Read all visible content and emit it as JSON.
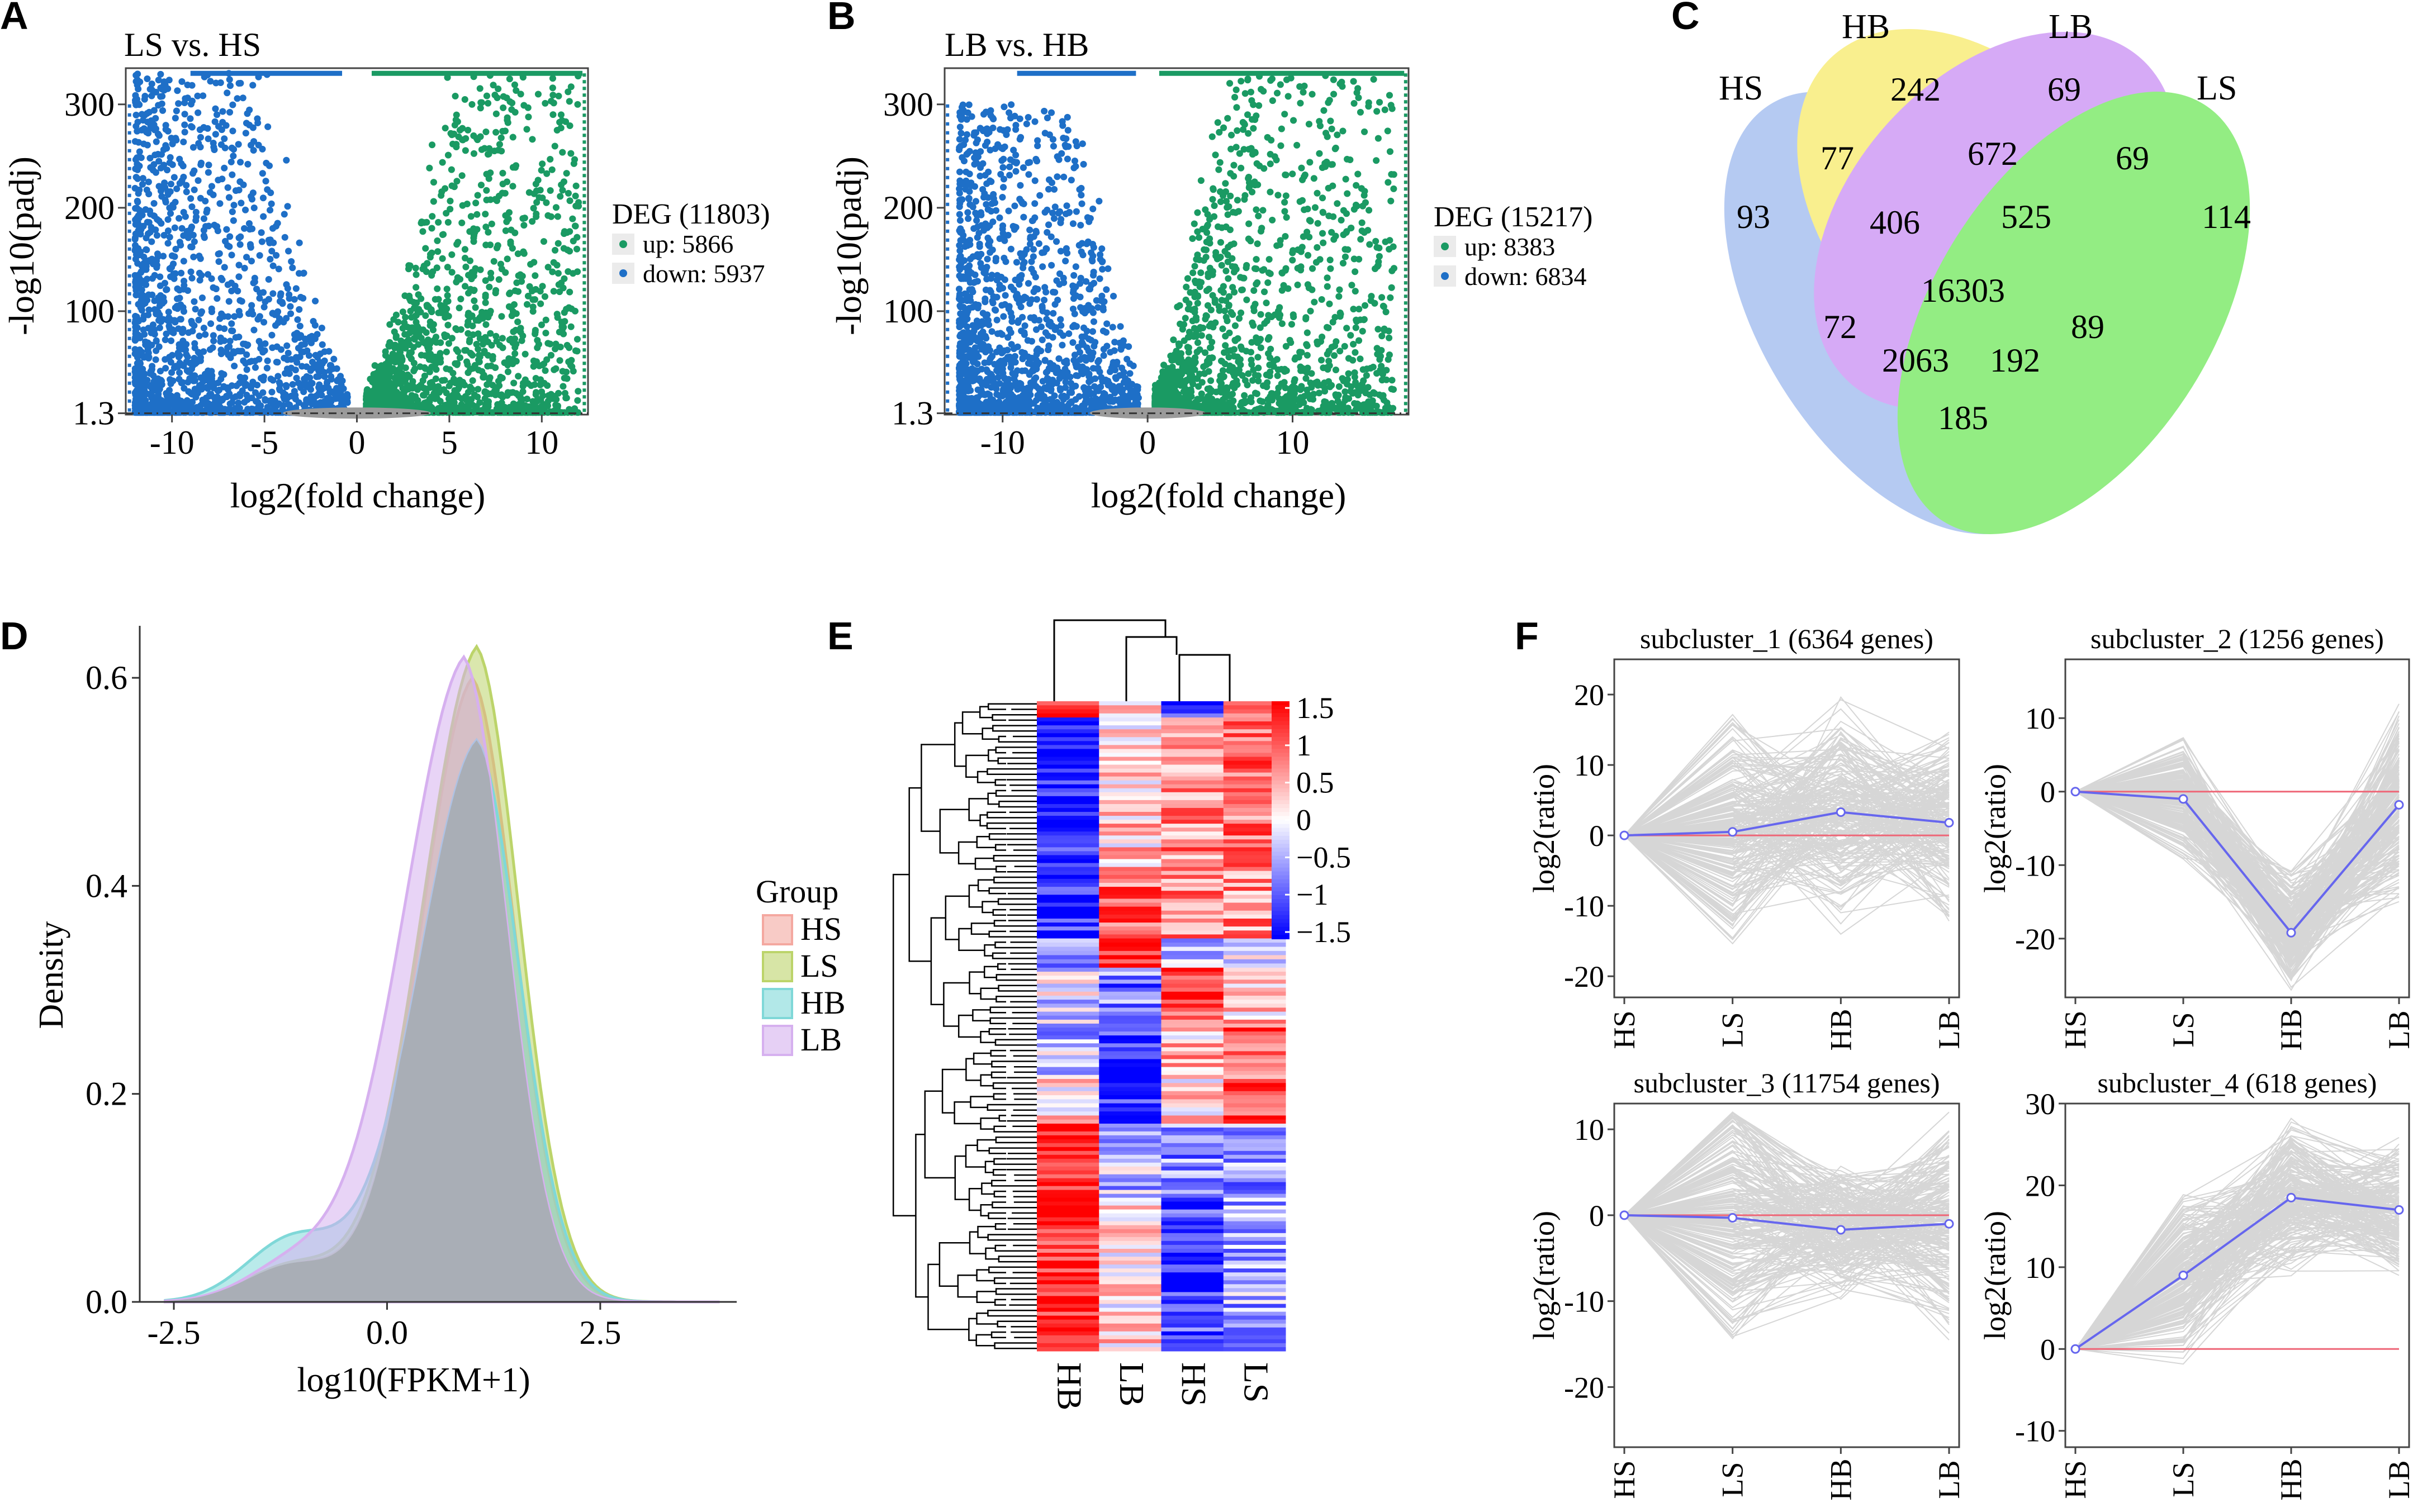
{
  "colors": {
    "up": "#1a9a63",
    "down": "#1e6fc7",
    "ns": "#9a9a9a",
    "hs": "#f4a8a0",
    "ls": "#bcd46a",
    "hb": "#7fd8d8",
    "lb": "#d6b0ef",
    "overlap": "#a9aeb6",
    "heat_low": "#1a1aff",
    "heat_mid": "#ffffff",
    "heat_high": "#ff1a1a",
    "profile": "#cccccc",
    "centroid": "#6666ee",
    "zero": "#ee6677"
  },
  "panels": {
    "a": "A",
    "b": "B",
    "c": "C",
    "d": "D",
    "e": "E",
    "f": "F"
  },
  "chart_data": [
    {
      "id": "A",
      "type": "scatter",
      "title": "LS vs. HS",
      "xlabel": "log2(fold change)",
      "ylabel": "-log10(padj)",
      "xlim": [
        -12.5,
        12.5
      ],
      "ylim": [
        0,
        335
      ],
      "xticks": [
        -10,
        -5,
        0,
        5,
        10
      ],
      "yticks": [
        1.3,
        100,
        200,
        300
      ],
      "threshold_y": 1.3,
      "legend": {
        "title": "DEG (11803)",
        "up": "up: 5866",
        "down": "down: 5937"
      },
      "series": [
        {
          "name": "up",
          "count": 5866,
          "x_range": [
            0.5,
            12
          ],
          "y_max": 330
        },
        {
          "name": "down",
          "count": 5937,
          "x_range": [
            -12,
            -0.5
          ],
          "y_max": 330
        }
      ]
    },
    {
      "id": "B",
      "type": "scatter",
      "title": "LB vs. HB",
      "xlabel": "log2(fold change)",
      "ylabel": "-log10(padj)",
      "xlim": [
        -14,
        18
      ],
      "ylim": [
        0,
        335
      ],
      "xticks": [
        -10,
        0,
        10
      ],
      "yticks": [
        1.3,
        100,
        200,
        300
      ],
      "threshold_y": 1.3,
      "legend": {
        "title": "DEG (15217)",
        "up": "up: 8383",
        "down": "down: 6834"
      },
      "series": [
        {
          "name": "up",
          "count": 8383,
          "x_range": [
            0.5,
            17
          ],
          "y_max": 330
        },
        {
          "name": "down",
          "count": 6834,
          "x_range": [
            -13,
            -0.5
          ],
          "y_max": 300
        }
      ]
    },
    {
      "id": "C",
      "type": "venn",
      "sets": [
        "HS",
        "HB",
        "LB",
        "LS"
      ],
      "counts": {
        "HS": "93",
        "HB": "242",
        "LB": "69",
        "LS": "114",
        "HS_HB": "77",
        "HB_LB": "672",
        "LB_LS": "69",
        "HS_HB_LB": "406",
        "HB_LB_LS": "525",
        "ALL": "16303",
        "HS_LB": "72",
        "HB_LS": "89",
        "HS_LB_LS": "2063",
        "HS_HB_LS": "192",
        "HS_LS": "185"
      }
    },
    {
      "id": "D",
      "type": "area",
      "xlabel": "log10(FPKM+1)",
      "ylabel": "Density",
      "xlim": [
        -2.9,
        4.1
      ],
      "ylim": [
        0,
        0.65
      ],
      "xticks": [
        "-2.5",
        "0.0",
        "2.5"
      ],
      "yticks": [
        "0.0",
        "0.2",
        "0.4",
        "0.6"
      ],
      "legend": {
        "title": "Group",
        "items": [
          "HS",
          "LS",
          "HB",
          "LB"
        ]
      },
      "series": [
        {
          "name": "HS",
          "peak_x": 1.0,
          "peak": 0.6
        },
        {
          "name": "LS",
          "peak_x": 1.05,
          "peak": 0.63
        },
        {
          "name": "HB",
          "peak_x": 1.05,
          "peak": 0.54
        },
        {
          "name": "LB",
          "peak_x": 0.9,
          "peak": 0.62
        }
      ]
    },
    {
      "id": "E",
      "type": "heatmap",
      "columns": [
        "HB",
        "LB",
        "HS",
        "LS"
      ],
      "colorbar": {
        "ticks": [
          "1.5",
          "1",
          "0.5",
          "0",
          "−0.5",
          "−1",
          "−1.5"
        ],
        "range": [
          -1.5,
          1.5
        ]
      },
      "blocks": [
        {
          "frac": 0.025,
          "values": [
            1.2,
            0.3,
            -1.3,
            0.6
          ]
        },
        {
          "frac": 0.23,
          "values": [
            -1.4,
            0.3,
            0.7,
            0.8
          ]
        },
        {
          "frac": 0.11,
          "values": [
            -1.3,
            0.9,
            0.8,
            0.6
          ]
        },
        {
          "frac": 0.045,
          "values": [
            -0.5,
            1.1,
            -0.6,
            -0.2
          ]
        },
        {
          "frac": 0.08,
          "values": [
            -0.2,
            -0.8,
            1.2,
            0.3
          ]
        },
        {
          "frac": 0.085,
          "values": [
            -0.4,
            -1.2,
            0.4,
            1.1
          ]
        },
        {
          "frac": 0.075,
          "values": [
            0.2,
            -1.3,
            0.3,
            1.0
          ]
        },
        {
          "frac": 0.12,
          "values": [
            1.4,
            -0.4,
            -0.7,
            -0.6
          ]
        },
        {
          "frac": 0.23,
          "values": [
            1.3,
            0.2,
            -1.1,
            -0.5
          ]
        }
      ]
    },
    {
      "id": "F",
      "type": "line",
      "xcategories": [
        "HS",
        "LS",
        "HB",
        "LB"
      ],
      "ylabel": "log2(ratio)",
      "subplots": [
        {
          "title": "subcluster_1 (6364 genes)",
          "ylim": [
            -23,
            25
          ],
          "yticks": [
            -20,
            -10,
            0,
            10,
            20
          ],
          "centroid": [
            0,
            0.5,
            3.3,
            1.8
          ],
          "spread": [
            0,
            18,
            18,
            15
          ]
        },
        {
          "title": "subcluster_2 (1256 genes)",
          "ylim": [
            -28,
            18
          ],
          "yticks": [
            -20,
            -10,
            0,
            10
          ],
          "centroid": [
            0,
            -1,
            -19.2,
            -1.8
          ],
          "spread": [
            0,
            9,
            9,
            15
          ]
        },
        {
          "title": "subcluster_3 (11754 genes)",
          "ylim": [
            -27,
            13
          ],
          "yticks": [
            -20,
            -10,
            0,
            10
          ],
          "centroid": [
            0,
            -0.3,
            -1.7,
            -1
          ],
          "spread": [
            0,
            18,
            9,
            14
          ]
        },
        {
          "title": "subcluster_4 (618 genes)",
          "ylim": [
            -12,
            30
          ],
          "yticks": [
            -10,
            0,
            10,
            20,
            30
          ],
          "centroid": [
            0,
            9,
            18.5,
            17
          ],
          "spread": [
            0,
            12,
            10,
            9
          ]
        }
      ]
    }
  ]
}
